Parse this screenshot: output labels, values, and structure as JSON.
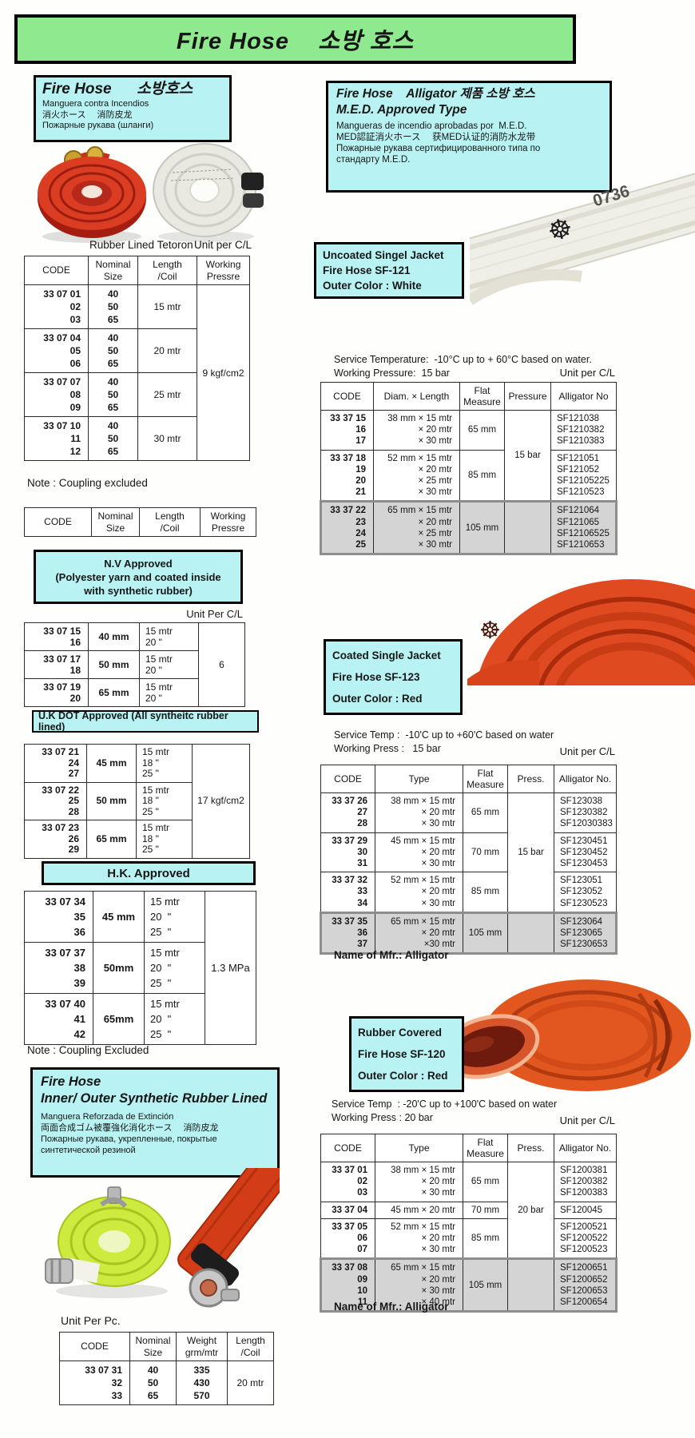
{
  "banner": "Fire Hose    소방 호스",
  "colors": {
    "banner_green": "#8fe98f",
    "box_cyan": "#b8f2f2",
    "highlight_gray": "#d4d4d4",
    "hose_red": "#c92d1d",
    "hose_white": "#efeee7",
    "hose_orange": "#e2571f",
    "hose_green": "#cdea3e"
  },
  "left": {
    "intro": {
      "title": "Fire Hose      소방호스",
      "lines": "Manguera contra Incendios\n消火ホース　 消防皮龙\nПожарные рукава (шланги)"
    },
    "caption_product": "Rubber Lined Tetoron",
    "caption_unit": "Unit per C/L",
    "note1": "Note : Coupling excluded",
    "nv_box": "N.V Approved\n(Polyester yarn and coated inside\nwith synthetic rubber)",
    "unit_per_cl": "Unit Per C/L",
    "ukdot_box": "U.K DOT Approved (All syntheitc rubber lined)",
    "hk_box": "H.K. Approved",
    "note2": "Note : Coupling Excluded",
    "rubber_box": {
      "title": "Fire Hose\nInner/ Outer Synthetic Rubber Lined",
      "lines": "Manguera Reforzada de Extinción\n両面合成ゴム被覆強化消化ホース　 消防皮龙\nПожарные рукава, укрепленные, покрытые\nсинтетической резиной"
    },
    "unit_per_pc": "Unit Per Pc."
  },
  "right": {
    "med_box": {
      "title1": "Fire Hose    Alligator 제품 소방 호스",
      "title2": "M.E.D. Approved Type",
      "lines": "Mangueras de incendio aprobadas por  M.E.D.\nMED認証消火ホース　 获MED认证的消防水龙带\nПожарные рукава сертифицированного типа по\nстандарту M.E.D."
    },
    "hose_marking": "0736",
    "wheel_icon": "☸",
    "s1": {
      "label": "Uncoated Singel Jacket\nFire Hose SF-121\nOuter Color : White",
      "service": "Service Temperature:  -10°C up to + 60°C based on water.\nWorking Pressure:  15 bar",
      "unit": "Unit per C/L"
    },
    "s2": {
      "label": "Coated Single Jacket\nFire Hose SF-123\nOuter Color : Red",
      "service": "Service Temp :  -10'C up to +60'C based on water\nWorking Press :   15 bar",
      "unit": "Unit per C/L",
      "mfr": "Name of Mfr.: Alligator"
    },
    "s3": {
      "label": "Rubber Covered\nFire Hose SF-120\nOuter Color : Red",
      "service": "Service Temp  : -20'C up to +100'C based on water\nWorking Press : 20 bar",
      "unit": "Unit per C/L",
      "mfr": "Name of Mfr.: Alligator"
    }
  },
  "tables": {
    "t1": {
      "widths": [
        80,
        62,
        74,
        66
      ],
      "headers": [
        "CODE",
        "Nominal\nSize",
        "Length\n/Coil",
        "Working\nPressre"
      ],
      "groups": [
        {
          "cells": [
            {
              "t": "33 07 01\n02\n03",
              "c": "r b"
            },
            {
              "t": "40\n50\n65",
              "c": "b"
            },
            {
              "t": "15 mtr"
            },
            {
              "t": "9 kgf/cm2",
              "rs": 4
            }
          ]
        },
        {
          "cells": [
            {
              "t": "33 07 04\n05\n06",
              "c": "r b"
            },
            {
              "t": "40\n50\n65",
              "c": "b"
            },
            {
              "t": "20 mtr"
            }
          ]
        },
        {
          "cells": [
            {
              "t": "33 07 07\n08\n09",
              "c": "r b"
            },
            {
              "t": "40\n50\n65",
              "c": "b"
            },
            {
              "t": "25 mtr"
            }
          ]
        },
        {
          "cells": [
            {
              "t": "33 07 10\n11\n12",
              "c": "r b"
            },
            {
              "t": "40\n50\n65",
              "c": "b"
            },
            {
              "t": "30 mtr"
            }
          ]
        }
      ]
    },
    "t2": {
      "widths": [
        84,
        60,
        76,
        70
      ],
      "headers": [
        "CODE",
        "Nominal\nSize",
        "Length\n/Coil",
        "Working\nPressre"
      ],
      "groups": []
    },
    "t3": {
      "widths": [
        80,
        64,
        74,
        58
      ],
      "groups": [
        {
          "cells": [
            {
              "t": "33 07 15\n16",
              "c": "r b"
            },
            {
              "t": "40 mm",
              "c": "b"
            },
            {
              "t": "15 mtr\n20 \"",
              "c": "l"
            },
            {
              "t": "6",
              "rs": 3
            }
          ]
        },
        {
          "cells": [
            {
              "t": "33 07 17\n18",
              "c": "r b"
            },
            {
              "t": "50 mm",
              "c": "b"
            },
            {
              "t": "15 mtr\n20 \"",
              "c": "l"
            }
          ]
        },
        {
          "cells": [
            {
              "t": "33 07 19\n20",
              "c": "r b"
            },
            {
              "t": "65 mm",
              "c": "b"
            },
            {
              "t": "15 mtr\n20 \"",
              "c": "l"
            }
          ]
        }
      ]
    },
    "t4": {
      "widths": [
        78,
        62,
        70,
        72
      ],
      "groups": [
        {
          "cells": [
            {
              "t": "33 07 21\n24\n27",
              "c": "r b"
            },
            {
              "t": "45 mm",
              "c": "b"
            },
            {
              "t": "15 mtr\n18 \"\n25 \"",
              "c": "l"
            },
            {
              "t": "17 kgf/cm2",
              "rs": 3
            }
          ]
        },
        {
          "cells": [
            {
              "t": "33 07 22\n25\n28",
              "c": "r b"
            },
            {
              "t": "50 mm",
              "c": "b"
            },
            {
              "t": "15 mtr\n18 \"\n25 \"",
              "c": "l"
            }
          ]
        },
        {
          "cells": [
            {
              "t": "33 07 23\n26\n29",
              "c": "r b"
            },
            {
              "t": "65 mm",
              "c": "b"
            },
            {
              "t": "15 mtr\n18 \"\n25 \"",
              "c": "l"
            }
          ]
        }
      ]
    },
    "t5": {
      "widths": [
        86,
        64,
        76,
        64
      ],
      "groups": [
        {
          "cells": [
            {
              "t": "33 07 34\n35\n36",
              "c": "r b"
            },
            {
              "t": "45 mm",
              "c": "b"
            },
            {
              "t": "15 mtr\n20  \"\n25  \"",
              "c": "l"
            },
            {
              "t": "1.3 MPa",
              "rs": 3
            }
          ]
        },
        {
          "cells": [
            {
              "t": "33 07 37\n38\n39",
              "c": "r b"
            },
            {
              "t": "50mm",
              "c": "b"
            },
            {
              "t": "15 mtr\n20  \"\n25  \"",
              "c": "l"
            }
          ]
        },
        {
          "cells": [
            {
              "t": "33 07 40\n41\n42",
              "c": "r b"
            },
            {
              "t": "65mm",
              "c": "b"
            },
            {
              "t": "15 mtr\n20  \"\n25  \"",
              "c": "l"
            }
          ]
        }
      ]
    },
    "t6": {
      "widths": [
        88,
        58,
        64,
        58
      ],
      "headers": [
        "CODE",
        "Nominal\nSize",
        "Weight\ngrm/mtr",
        "Length\n/Coil"
      ],
      "groups": [
        {
          "cells": [
            {
              "t": "33 07 31\n32\n33",
              "c": "r b"
            },
            {
              "t": "40\n50\n65",
              "c": "b"
            },
            {
              "t": "335\n430\n570",
              "c": "b"
            },
            {
              "t": "20 mtr"
            }
          ]
        }
      ]
    },
    "r1": {
      "widths": [
        66,
        108,
        56,
        58,
        82
      ],
      "headers": [
        "CODE",
        "Diam. × Length",
        "Flat\nMeasure",
        "Pressure",
        "Alligator No"
      ],
      "groups": [
        {
          "cells": [
            {
              "t": "33 37 15\n16\n17",
              "c": "r b"
            },
            {
              "t": "38 mm × 15 mtr\n× 20 mtr\n× 30 mtr",
              "c": "r"
            },
            {
              "t": "65 mm"
            },
            {
              "t": "15 bar",
              "rs": 2
            },
            {
              "t": "SF121038\nSF1210382\nSF1210383",
              "c": "l"
            }
          ]
        },
        {
          "cells": [
            {
              "t": "33 37 18\n19\n20\n21",
              "c": "r b"
            },
            {
              "t": "52 mm × 15 mtr\n× 20 mtr\n× 25 mtr\n× 30 mtr",
              "c": "r"
            },
            {
              "t": "85 mm"
            },
            {
              "t": "SF121051\nSF121052\nSF12105225\nSF1210523",
              "c": "l"
            }
          ]
        },
        {
          "hl": true,
          "cells": [
            {
              "t": "33 37 22\n23\n24\n25",
              "c": "r b"
            },
            {
              "t": "65 mm × 15 mtr\n× 20 mtr\n× 25 mtr\n× 30 mtr",
              "c": "r"
            },
            {
              "t": "105 mm"
            },
            {
              "t": ""
            },
            {
              "t": "SF121064\nSF121065\nSF12106525\nSF1210653",
              "c": "l"
            }
          ]
        }
      ]
    },
    "r2": {
      "widths": [
        68,
        110,
        56,
        58,
        78
      ],
      "headers": [
        "CODE",
        "Type",
        "Flat\nMeasure",
        "Press.",
        "Alligator No."
      ],
      "groups": [
        {
          "cells": [
            {
              "t": "33 37 26\n27\n28",
              "c": "r b"
            },
            {
              "t": "38 mm × 15 mtr\n× 20 mtr\n× 30 mtr",
              "c": "r"
            },
            {
              "t": "65 mm"
            },
            {
              "t": "15 bar",
              "rs": 3
            },
            {
              "t": "SF123038\nSF1230382\nSF12030383",
              "c": "l"
            }
          ]
        },
        {
          "cells": [
            {
              "t": "33 37 29\n30\n31",
              "c": "r b"
            },
            {
              "t": "45 mm × 15 mtr\n× 20 mtr\n× 30 mtr",
              "c": "r"
            },
            {
              "t": "70 mm"
            },
            {
              "t": "SF1230451\nSF1230452\nSF1230453",
              "c": "l"
            }
          ]
        },
        {
          "cells": [
            {
              "t": "33 37 32\n33\n34",
              "c": "r b"
            },
            {
              "t": "52 mm × 15 mtr\n× 20 mtr\n× 30 mtr",
              "c": "r"
            },
            {
              "t": "85 mm"
            },
            {
              "t": "SF123051\nSF123052\nSF1230523",
              "c": "l"
            }
          ]
        },
        {
          "hl": true,
          "cells": [
            {
              "t": "33 37 35\n36\n37",
              "c": "r b"
            },
            {
              "t": "65 mm × 15 mtr\n× 20 mtr\n×30 mtr",
              "c": "r"
            },
            {
              "t": "105 mm"
            },
            {
              "t": ""
            },
            {
              "t": "SF123064\nSF123065\nSF1230653",
              "c": "l"
            }
          ]
        }
      ]
    },
    "r3": {
      "widths": [
        68,
        110,
        56,
        58,
        78
      ],
      "headers": [
        "CODE",
        "Type",
        "Flat\nMeasure",
        "Press.",
        "Alligator No."
      ],
      "groups": [
        {
          "cells": [
            {
              "t": "33 37 01\n02\n03",
              "c": "r b"
            },
            {
              "t": "38 mm × 15 mtr\n× 20 mtr\n× 30 mtr",
              "c": "r"
            },
            {
              "t": "65 mm"
            },
            {
              "t": "20 bar",
              "rs": 3
            },
            {
              "t": "SF1200381\nSF1200382\nSF1200383",
              "c": "l"
            }
          ]
        },
        {
          "cells": [
            {
              "t": "33 37 04",
              "c": "r b"
            },
            {
              "t": "45 mm × 20 mtr",
              "c": "r"
            },
            {
              "t": "70 mm"
            },
            {
              "t": "SF120045",
              "c": "l"
            }
          ]
        },
        {
          "cells": [
            {
              "t": "33 37 05\n06\n07",
              "c": "r b"
            },
            {
              "t": "52 mm × 15 mtr\n× 20 mtr\n× 30 mtr",
              "c": "r"
            },
            {
              "t": "85 mm"
            },
            {
              "t": "SF1200521\nSF1200522\nSF1200523",
              "c": "l"
            }
          ]
        },
        {
          "hl": true,
          "cells": [
            {
              "t": "33 37 08\n09\n10\n11",
              "c": "r b"
            },
            {
              "t": "65 mm × 15 mtr\n× 20 mtr\n× 30 mtr\n× 40 mtr",
              "c": "r"
            },
            {
              "t": "105 mm"
            },
            {
              "t": ""
            },
            {
              "t": "SF1200651\nSF1200652\nSF1200653\nSF1200654",
              "c": "l"
            }
          ]
        }
      ]
    }
  }
}
